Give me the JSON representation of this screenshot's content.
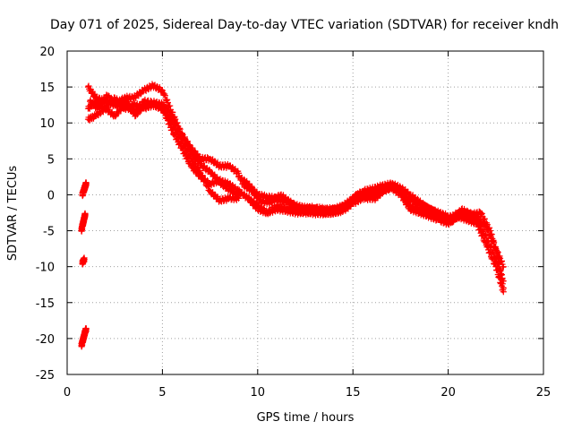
{
  "chart_data": {
    "type": "scatter",
    "title": "Day 071 of 2025, Sidereal Day-to-day VTEC variation (SDTVAR) for receiver kndh",
    "xlabel": "GPS time / hours",
    "ylabel": "SDTVAR / TECUs",
    "xlim": [
      0,
      25
    ],
    "ylim": [
      -25,
      20
    ],
    "xticks": [
      0,
      5,
      10,
      15,
      20,
      25
    ],
    "yticks": [
      -25,
      -20,
      -15,
      -10,
      -5,
      0,
      5,
      10,
      15,
      20
    ],
    "grid": true,
    "marker": "plus",
    "color": "#ff0000",
    "series": [
      {
        "name": "early-a",
        "x": [
          0.75,
          0.8,
          0.85,
          0.9,
          0.95,
          1.0
        ],
        "y": [
          -21,
          -20.5,
          -20,
          -19.5,
          -19,
          -18.7
        ]
      },
      {
        "name": "early-b",
        "x": [
          0.8,
          0.85,
          0.9
        ],
        "y": [
          -9.5,
          -9.2,
          -9
        ]
      },
      {
        "name": "early-c",
        "x": [
          0.75,
          0.8,
          0.85,
          0.9,
          0.95
        ],
        "y": [
          -5,
          -4.3,
          -3.8,
          -3.2,
          -2.7
        ]
      },
      {
        "name": "early-d",
        "x": [
          0.8,
          0.85,
          0.9,
          0.95,
          1.0
        ],
        "y": [
          0,
          0.4,
          0.8,
          1.2,
          1.6
        ]
      },
      {
        "name": "track-1",
        "x": [
          1.1,
          1.5,
          2.0,
          2.5,
          3.0,
          3.5,
          4.0,
          4.5,
          5.0,
          5.5,
          6.0,
          6.5,
          7.0,
          7.5,
          8.0,
          8.5,
          9.0
        ],
        "y": [
          15,
          13.5,
          13,
          12.5,
          13.5,
          13.5,
          14.5,
          15.2,
          14.5,
          11.5,
          8.5,
          6.5,
          5,
          5,
          4,
          4,
          3
        ]
      },
      {
        "name": "track-2",
        "x": [
          1.1,
          1.5,
          2.0,
          2.5,
          3.0,
          3.5,
          4.0,
          4.5,
          5.0,
          5.5,
          6.0,
          6.5,
          7.0,
          7.5,
          8.0,
          8.5,
          9.0
        ],
        "y": [
          12,
          13,
          12,
          13.5,
          12,
          12.5,
          12.3,
          12.5,
          12,
          9,
          6.5,
          4,
          2.5,
          1.5,
          2,
          1.5,
          0.5
        ]
      },
      {
        "name": "track-3",
        "x": [
          1.1,
          1.5,
          2.0,
          2.5,
          3.0,
          3.5,
          4.0,
          4.5,
          5.0,
          5.5,
          6.0,
          6.5,
          7.0,
          7.5,
          8.0,
          8.5,
          9.0
        ],
        "y": [
          10.5,
          11,
          12,
          11,
          12.5,
          11.5,
          12,
          12.5,
          12,
          10,
          7.5,
          5,
          3,
          0.5,
          -0.8,
          -0.5,
          -0.5
        ]
      },
      {
        "name": "track-4",
        "x": [
          1.2,
          1.6,
          2.1,
          2.6,
          3.1,
          3.6,
          4.0,
          4.6,
          5.1,
          5.6,
          6.1,
          6.6,
          7.1,
          7.6,
          8.1,
          8.6,
          9.0
        ],
        "y": [
          13,
          12,
          13.8,
          12.5,
          13,
          11,
          13,
          12.8,
          12.5,
          10.5,
          7.8,
          5.5,
          4,
          3,
          1.5,
          0.5,
          0
        ]
      },
      {
        "name": "track-5",
        "x": [
          9.0,
          9.5,
          10.0,
          10.5,
          11.0,
          11.5,
          12.0,
          12.5,
          13.0,
          13.5,
          14.0,
          14.5,
          15.0,
          15.5,
          16.0,
          16.5,
          17.0,
          17.5,
          18.0,
          18.5,
          19.0,
          19.5,
          20.0,
          20.5,
          21.0,
          21.5,
          22.0,
          22.5,
          22.9
        ],
        "y": [
          2.5,
          1.5,
          0,
          -0.3,
          -0.5,
          -1,
          -1.5,
          -1.8,
          -1.8,
          -2,
          -2,
          -1.5,
          -0.5,
          0.5,
          0.8,
          1.2,
          1.5,
          1,
          0,
          -1,
          -2,
          -2.5,
          -3,
          -3.2,
          -2.5,
          -3,
          -4.5,
          -7.5,
          -10
        ]
      },
      {
        "name": "track-6",
        "x": [
          9.0,
          9.5,
          10.0,
          10.5,
          11.0,
          11.5,
          12.0,
          12.5,
          13.0,
          13.5,
          14.0,
          14.5,
          15.0,
          15.5,
          16.0,
          16.5,
          17.0,
          17.5,
          18.0,
          18.5,
          19.0,
          19.5,
          20.0,
          20.5,
          21.0,
          21.5,
          22.0,
          22.5,
          22.9
        ],
        "y": [
          0.5,
          -0.5,
          -2,
          -2.5,
          -1.5,
          -2,
          -2.2,
          -2.5,
          -2.3,
          -2.5,
          -2.5,
          -2,
          -1,
          0,
          0,
          0.5,
          1,
          0.5,
          -1.5,
          -2,
          -2.5,
          -3,
          -3.5,
          -2.5,
          -3,
          -3.5,
          -6,
          -9,
          -12
        ]
      },
      {
        "name": "track-7",
        "x": [
          9.2,
          9.7,
          10.2,
          10.7,
          11.2,
          11.7,
          12.2,
          12.7,
          13.2,
          13.7,
          14.2,
          14.7,
          15.2,
          15.7,
          16.2,
          16.7,
          17.2,
          17.7,
          18.2,
          18.7,
          19.2,
          19.7,
          20.2,
          20.7,
          21.2,
          21.7,
          22.2,
          22.6,
          22.9
        ],
        "y": [
          1.5,
          0.5,
          -1,
          -1,
          0,
          -1,
          -2,
          -2,
          -2,
          -2.2,
          -2,
          -1.5,
          0,
          -0.5,
          -0.5,
          0.8,
          1.2,
          0,
          -1,
          -1.5,
          -2.2,
          -3,
          -3.8,
          -2,
          -2.8,
          -2.5,
          -5,
          -8.5,
          -13
        ]
      },
      {
        "name": "track-8",
        "x": [
          9.5,
          10.0,
          10.5,
          11.0,
          11.5,
          12.0,
          12.5,
          13.0,
          13.5,
          14.0,
          14.5,
          15.0,
          15.5,
          16.0,
          16.5,
          17.0,
          17.5,
          18.0,
          18.5,
          19.0,
          19.5,
          20.0,
          20.5,
          21.0,
          21.5,
          22.0,
          22.5,
          22.9
        ],
        "y": [
          -0.5,
          -1.5,
          -2.5,
          -2,
          -2.2,
          -2.5,
          -2.4,
          -2.6,
          -2.6,
          -2.5,
          -2.2,
          -1.2,
          -0.5,
          0.3,
          0.5,
          1,
          0,
          -2,
          -2.5,
          -3,
          -3.5,
          -4,
          -3,
          -3.5,
          -4,
          -7,
          -10,
          -13.5
        ]
      }
    ]
  }
}
